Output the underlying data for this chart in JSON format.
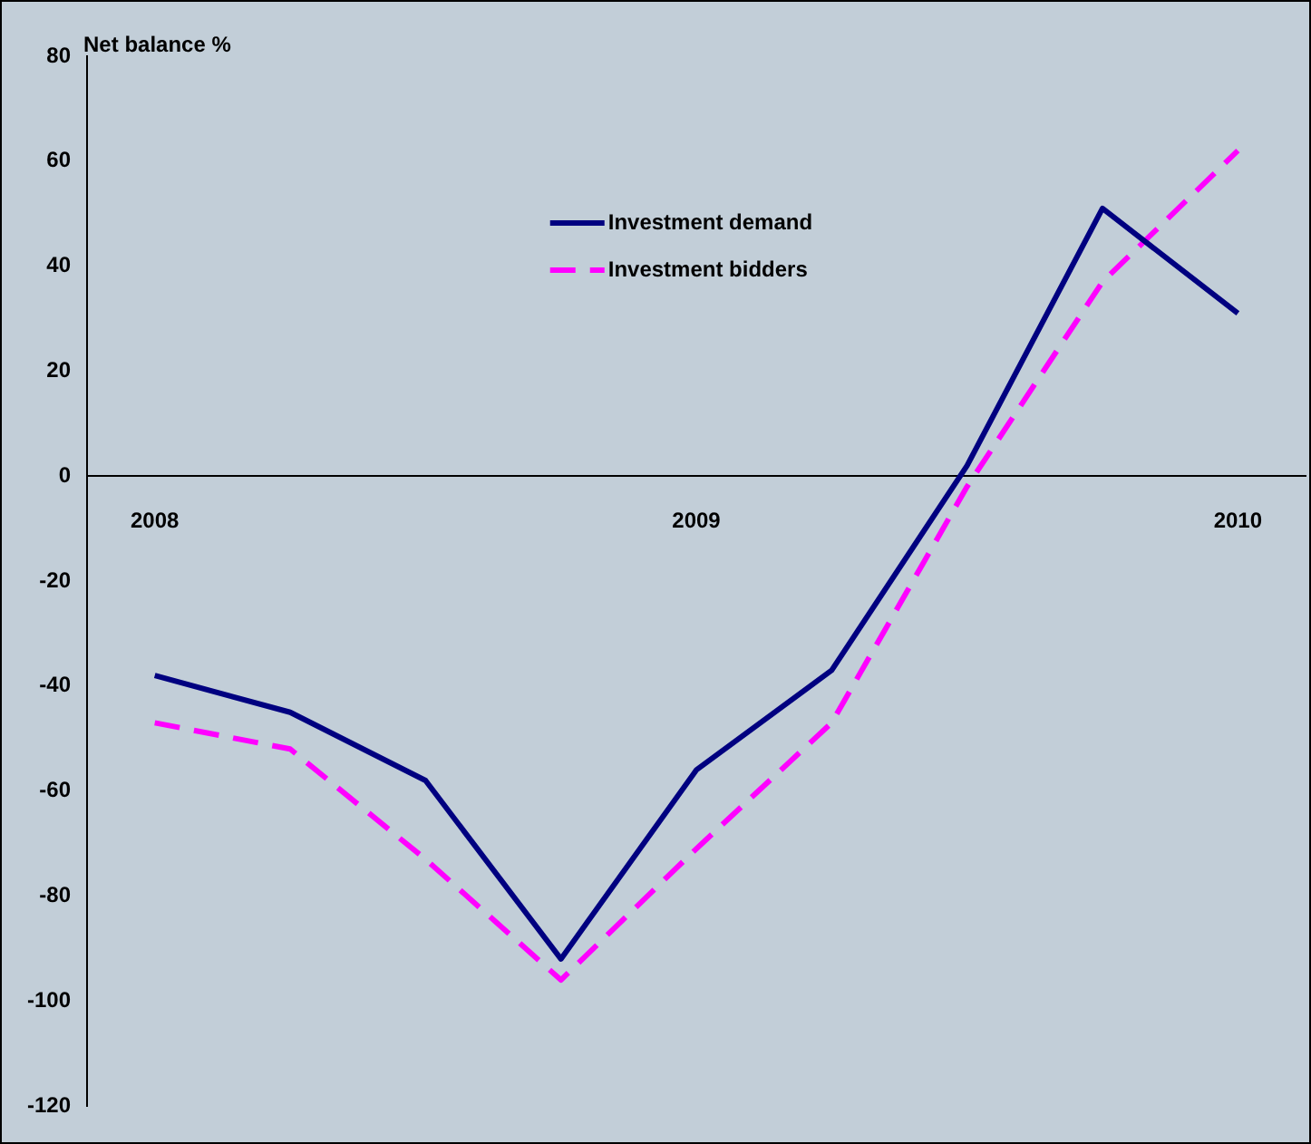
{
  "chart_data": {
    "type": "line",
    "ylabel": "Net balance %",
    "categories": [
      "2008",
      null,
      null,
      null,
      "2009",
      null,
      null,
      null,
      "2010"
    ],
    "series": [
      {
        "name": "Investment demand",
        "color": "#000080",
        "line_style": "solid",
        "values": [
          -38,
          -45,
          -58,
          -92,
          -56,
          -37,
          2,
          51,
          31
        ]
      },
      {
        "name": "Investment bidders",
        "color": "#ff00ff",
        "line_style": "dashed",
        "values": [
          -47,
          -52,
          -73,
          -96,
          -71,
          -47,
          -2,
          37,
          62
        ]
      }
    ],
    "ylim": [
      -120,
      80
    ],
    "yticks": [
      -120,
      -100,
      -80,
      -60,
      -40,
      -20,
      0,
      20,
      40,
      60,
      80
    ],
    "grid": false,
    "legend": "top",
    "marker": "none"
  }
}
